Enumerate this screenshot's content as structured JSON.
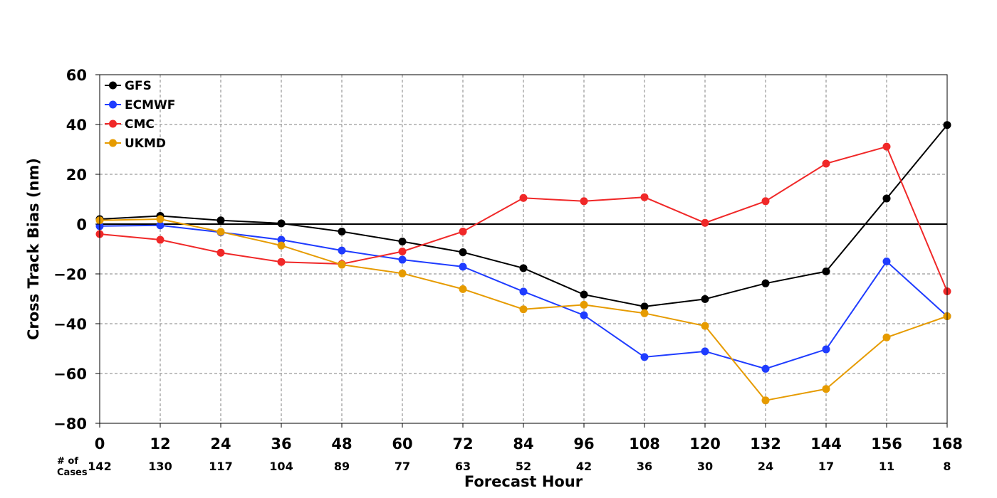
{
  "chart_data": {
    "type": "line",
    "title": "",
    "xlabel": "Forecast Hour",
    "ylabel": "Cross Track Bias (nm)",
    "x": [
      0,
      12,
      24,
      36,
      48,
      60,
      72,
      84,
      96,
      108,
      120,
      132,
      144,
      156,
      168
    ],
    "x_tick_labels": [
      "0",
      "12",
      "24",
      "36",
      "48",
      "60",
      "72",
      "84",
      "96",
      "108",
      "120",
      "132",
      "144",
      "156",
      "168"
    ],
    "xlim": [
      0,
      168
    ],
    "ylim": [
      -80,
      60
    ],
    "y_ticks": [
      60,
      40,
      20,
      0,
      -20,
      -40,
      -60,
      -80
    ],
    "y_tick_labels": [
      "60",
      "40",
      "20",
      "0",
      "−20",
      "−40",
      "−60",
      "−80"
    ],
    "grid": true,
    "zero_line": true,
    "legend_position": "top-left",
    "cases_label_line1": "# of",
    "cases_label_line2": "Cases",
    "cases": [
      "142",
      "130",
      "117",
      "104",
      "89",
      "77",
      "63",
      "52",
      "42",
      "36",
      "30",
      "24",
      "17",
      "11",
      "8"
    ],
    "series": [
      {
        "name": "GFS",
        "color": "#000000",
        "values": [
          2,
          3.3,
          1.5,
          0.3,
          -3,
          -7,
          -11.3,
          -17.7,
          -28.3,
          -33.1,
          -30.1,
          -23.8,
          -19,
          10.3,
          39.8
        ]
      },
      {
        "name": "ECMWF",
        "color": "#1f3cff",
        "values": [
          -0.8,
          -0.5,
          -3.3,
          -6.3,
          -10.6,
          -14.3,
          -17.1,
          -27.1,
          -36.6,
          -53.4,
          -51.1,
          -58.1,
          -50.3,
          -15,
          -37
        ]
      },
      {
        "name": "CMC",
        "color": "#f02828",
        "values": [
          -4,
          -6.3,
          -11.5,
          -15.2,
          -16,
          -11,
          -3,
          10.5,
          9.2,
          10.8,
          0.5,
          9.2,
          24.3,
          31.1,
          -27
        ]
      },
      {
        "name": "UKMD",
        "color": "#e69b00",
        "values": [
          1.5,
          2,
          -3.1,
          -8.6,
          -16.3,
          -19.8,
          -26.1,
          -34.2,
          -32.4,
          -35.8,
          -40.9,
          -70.8,
          -66.2,
          -45.5,
          -37
        ]
      }
    ]
  }
}
